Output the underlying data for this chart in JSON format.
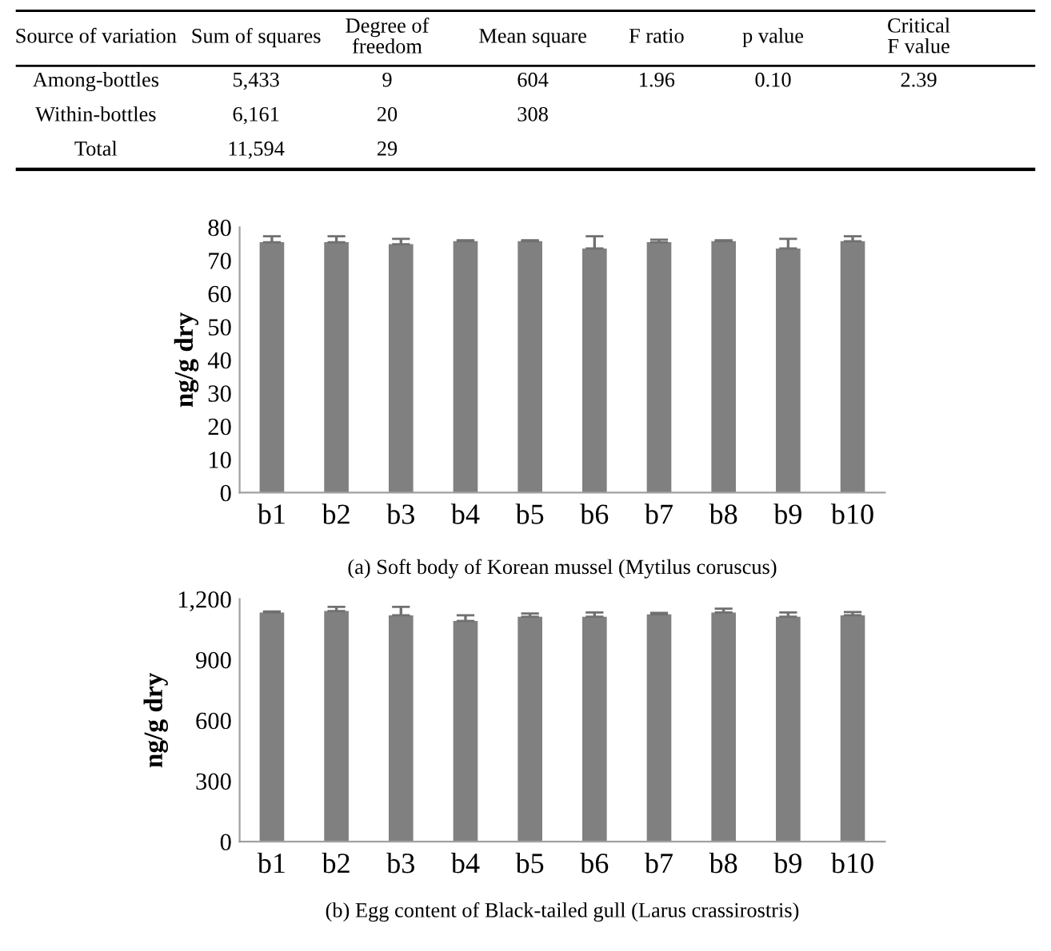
{
  "chart_data": [
    {
      "type": "other",
      "categories": [
        "Source of variation",
        "Sum of squares",
        "Degree of\nfreedom",
        "Mean square",
        "F ratio",
        "p value",
        "Critical\nF value"
      ],
      "cell_labels": [
        [
          "Among-bottles",
          "5,433",
          "9",
          "604",
          "1.96",
          "0.10",
          "2.39"
        ],
        [
          "Within-bottles",
          "6,161",
          "20",
          "308",
          null,
          null,
          null
        ],
        [
          "Total",
          "11,594",
          "29",
          null,
          null,
          null,
          null
        ]
      ]
    },
    {
      "type": "bar",
      "ylabel": "ng/g dry",
      "categories": [
        "b1",
        "b2",
        "b3",
        "b4",
        "b5",
        "b6",
        "b7",
        "b8",
        "b9",
        "b10"
      ],
      "values": [
        75.5,
        75.5,
        74.9,
        75.8,
        75.8,
        73.6,
        75.5,
        75.8,
        73.6,
        75.8
      ],
      "errors": [
        1.8,
        1.8,
        1.6,
        0.3,
        0.3,
        3.7,
        0.8,
        0.3,
        2.9,
        1.5
      ],
      "color": "#808080",
      "ylim": [
        0,
        80
      ],
      "yticks": [
        0,
        10,
        20,
        30,
        40,
        50,
        60,
        70,
        80
      ],
      "grid": false,
      "legend": false,
      "annotations": [
        "(a) Soft body of Korean mussel (Mytilus coruscus)"
      ]
    },
    {
      "type": "bar",
      "ylabel": "ng/g dry",
      "categories": [
        "b1",
        "b2",
        "b3",
        "b4",
        "b5",
        "b6",
        "b7",
        "b8",
        "b9",
        "b10"
      ],
      "values": [
        1134,
        1141,
        1120,
        1092,
        1113,
        1113,
        1125,
        1134,
        1113,
        1120
      ],
      "errors": [
        5,
        21,
        42,
        28,
        16,
        21,
        7,
        19,
        21,
        16
      ],
      "color": "#808080",
      "ylim": [
        0,
        1200
      ],
      "yticks": [
        0,
        300,
        600,
        900,
        {
          "value": 1200,
          "label": "1,200"
        }
      ],
      "grid": false,
      "legend": false,
      "annotations": [
        "(b) Egg content of Black-tailed gull (Larus crassirostris)"
      ]
    }
  ]
}
